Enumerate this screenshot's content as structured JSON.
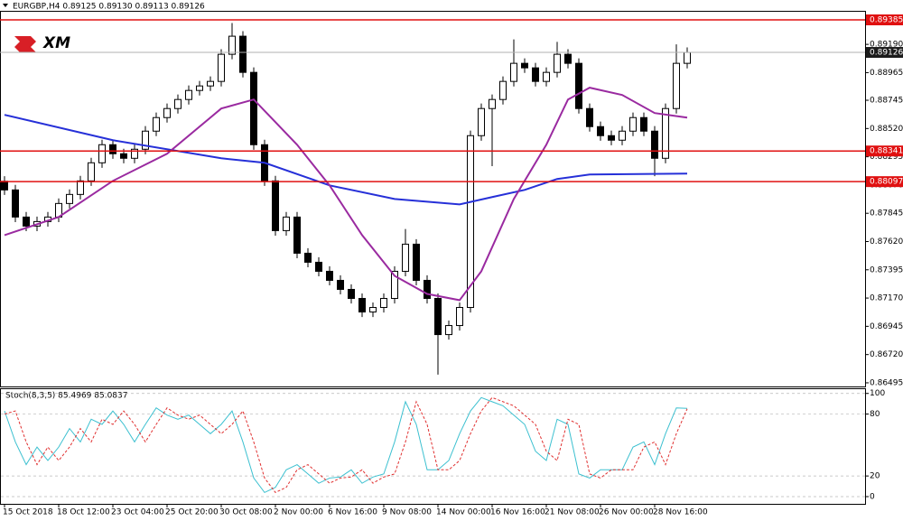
{
  "chart_data": [
    {
      "type": "candlestick",
      "title": "EURGBP,H4  0.89125 0.89130 0.89113 0.89126",
      "logo": "XM",
      "open": [
        0.881,
        0.88031,
        0.87815,
        0.87743,
        0.87779,
        0.87815,
        0.87923,
        0.87995,
        0.88103,
        0.88247,
        0.88391,
        0.88319,
        0.88283,
        0.88355,
        0.88499,
        0.88607,
        0.88679,
        0.88751,
        0.88823,
        0.88859,
        0.88895,
        0.89111,
        0.89255,
        0.88967,
        0.88391,
        0.88103,
        0.87707,
        0.87815,
        0.87527,
        0.87455,
        0.87383,
        0.87311,
        0.87239,
        0.87167,
        0.87059,
        0.87095,
        0.87167,
        0.87383,
        0.87599,
        0.87311,
        0.87167,
        0.86879,
        0.86951,
        0.87095,
        0.88463,
        0.88679,
        0.88751,
        0.88895,
        0.89039,
        0.89003,
        0.88895,
        0.88967,
        0.89111,
        0.89039,
        0.88679,
        0.88535,
        0.88463,
        0.88427,
        0.88499,
        0.88607,
        0.88499,
        0.88283,
        0.88679,
        0.89039
      ],
      "high": [
        0.8814,
        0.88071,
        0.87855,
        0.87819,
        0.87855,
        0.87963,
        0.88035,
        0.88143,
        0.88287,
        0.88431,
        0.88431,
        0.88359,
        0.88395,
        0.88539,
        0.88647,
        0.88719,
        0.88791,
        0.88863,
        0.88899,
        0.88935,
        0.89151,
        0.8936,
        0.89295,
        0.89007,
        0.88431,
        0.88143,
        0.87855,
        0.87855,
        0.87567,
        0.87495,
        0.87423,
        0.87351,
        0.87279,
        0.87207,
        0.87135,
        0.87207,
        0.87423,
        0.8772,
        0.87639,
        0.87351,
        0.87207,
        0.86991,
        0.87135,
        0.88503,
        0.88719,
        0.88791,
        0.88935,
        0.8923,
        0.89079,
        0.89043,
        0.89007,
        0.8921,
        0.89151,
        0.89079,
        0.88719,
        0.88575,
        0.88503,
        0.88539,
        0.88647,
        0.88647,
        0.88539,
        0.88719,
        0.8919,
        0.89166
      ],
      "low": [
        0.87991,
        0.87775,
        0.87703,
        0.87703,
        0.87739,
        0.87775,
        0.87883,
        0.87955,
        0.88063,
        0.88207,
        0.88279,
        0.88243,
        0.88243,
        0.88315,
        0.88459,
        0.88567,
        0.88639,
        0.88711,
        0.88783,
        0.88819,
        0.88855,
        0.89071,
        0.88927,
        0.88351,
        0.88063,
        0.87667,
        0.87667,
        0.87487,
        0.87415,
        0.87343,
        0.87271,
        0.87199,
        0.87127,
        0.87019,
        0.87019,
        0.87055,
        0.87127,
        0.87343,
        0.87271,
        0.87127,
        0.8656,
        0.86839,
        0.86911,
        0.87055,
        0.88423,
        0.8822,
        0.88711,
        0.88855,
        0.88963,
        0.88855,
        0.88855,
        0.88927,
        0.88999,
        0.88639,
        0.88495,
        0.88423,
        0.88387,
        0.88387,
        0.88459,
        0.88459,
        0.8814,
        0.88243,
        0.88639,
        0.88999
      ],
      "close": [
        0.88031,
        0.87815,
        0.87743,
        0.87779,
        0.87815,
        0.87923,
        0.87995,
        0.88103,
        0.88247,
        0.88391,
        0.88319,
        0.88283,
        0.88355,
        0.88499,
        0.88607,
        0.88679,
        0.88751,
        0.88823,
        0.88859,
        0.88895,
        0.89111,
        0.89255,
        0.88967,
        0.88391,
        0.88103,
        0.87707,
        0.87815,
        0.87527,
        0.87455,
        0.87383,
        0.87311,
        0.87239,
        0.87167,
        0.87059,
        0.87095,
        0.87167,
        0.87383,
        0.87599,
        0.87311,
        0.87167,
        0.86879,
        0.86951,
        0.87095,
        0.88463,
        0.88679,
        0.88751,
        0.88895,
        0.89039,
        0.89003,
        0.88895,
        0.88967,
        0.89111,
        0.89039,
        0.88679,
        0.88535,
        0.88463,
        0.88427,
        0.88499,
        0.88607,
        0.88499,
        0.88283,
        0.88679,
        0.89039,
        0.89126
      ],
      "lines": [
        {
          "color": "#2630d8",
          "x": [
            0,
            10,
            20,
            24,
            30,
            36,
            42,
            45,
            48,
            51,
            54,
            63
          ],
          "values": [
            0.88629,
            0.88427,
            0.88283,
            0.88247,
            0.88067,
            0.87959,
            0.87916,
            0.87974,
            0.88031,
            0.88118,
            0.88154,
            0.88161
          ]
        },
        {
          "color": "#9a2aa0",
          "x": [
            0,
            5,
            10,
            15,
            20,
            23,
            27,
            30,
            33,
            36,
            39,
            42,
            44,
            47,
            50,
            52,
            54,
            57,
            60,
            63
          ],
          "values": [
            0.87671,
            0.87815,
            0.88103,
            0.88319,
            0.88679,
            0.88751,
            0.88391,
            0.88067,
            0.87671,
            0.87347,
            0.87203,
            0.87153,
            0.87383,
            0.87959,
            0.88391,
            0.88751,
            0.88845,
            0.88787,
            0.88643,
            0.88607
          ]
        }
      ],
      "levels": [
        {
          "value": 0.89385,
          "color": "#e01010"
        },
        {
          "value": 0.88341,
          "color": "#e01010"
        },
        {
          "value": 0.88097,
          "color": "#e01010"
        }
      ],
      "current_price": 0.89126,
      "ylim": [
        0.86466,
        0.89457
      ],
      "yticks": [
        {
          "value": 0.8919,
          "label": "0.89190"
        },
        0.88965,
        0.88745,
        {
          "value": 0.8852,
          "label": "0.88520"
        },
        0.88295,
        {
          "value": 0.8807,
          "label": "0.88070"
        },
        0.87845,
        {
          "value": 0.8762,
          "label": "0.87620"
        },
        0.87395,
        {
          "value": 0.8717,
          "label": "0.87170"
        },
        0.86945,
        {
          "value": 0.8672,
          "label": "0.86720"
        },
        0.86495
      ],
      "xticks": [
        {
          "value": 0,
          "label": "15 Oct 2018"
        },
        {
          "value": 5,
          "label": "18 Oct 12:00"
        },
        {
          "value": 10,
          "label": "23 Oct 04:00"
        },
        {
          "value": 15,
          "label": "25 Oct 20:00"
        },
        {
          "value": 20,
          "label": "30 Oct 08:00"
        },
        {
          "value": 25,
          "label": "2 Nov 00:00"
        },
        {
          "value": 30,
          "label": "6 Nov 16:00"
        },
        {
          "value": 35,
          "label": "9 Nov 08:00"
        },
        {
          "value": 40,
          "label": "14 Nov 00:00"
        },
        {
          "value": 45,
          "label": "16 Nov 16:00"
        },
        {
          "value": 50,
          "label": "21 Nov 08:00"
        },
        {
          "value": 55,
          "label": "26 Nov 00:00"
        },
        {
          "value": 60,
          "label": "28 Nov 16:00"
        }
      ]
    },
    {
      "type": "line",
      "title": "Stoch(8,3,5) 85.4969 85.0837",
      "ylim": [
        -7,
        105
      ],
      "yticks": [
        0,
        20,
        80,
        100
      ],
      "series": [
        {
          "color": "#3cc0d0",
          "dash": false,
          "values": [
            83,
            53,
            31,
            48,
            35,
            48,
            66,
            53,
            75,
            70,
            83,
            70,
            53,
            70,
            86,
            79,
            75,
            79,
            70,
            61,
            70,
            83,
            53,
            18,
            4,
            9,
            26,
            31,
            22,
            13,
            18,
            19,
            26,
            13,
            19,
            22,
            53,
            92,
            70,
            26,
            26,
            35,
            61,
            83,
            96,
            92,
            88,
            79,
            70,
            44,
            35,
            75,
            70,
            22,
            18,
            26,
            26,
            26,
            48,
            53,
            31,
            61,
            86,
            85.4969
          ]
        },
        {
          "color": "#e03030",
          "dash": true,
          "values": [
            80,
            83,
            53,
            31,
            48,
            35,
            48,
            66,
            53,
            75,
            70,
            83,
            70,
            53,
            70,
            86,
            79,
            75,
            79,
            70,
            61,
            70,
            83,
            53,
            18,
            4,
            9,
            26,
            31,
            22,
            13,
            18,
            19,
            26,
            13,
            19,
            22,
            53,
            92,
            70,
            26,
            26,
            35,
            61,
            83,
            96,
            92,
            88,
            79,
            70,
            44,
            35,
            75,
            70,
            22,
            18,
            26,
            26,
            26,
            48,
            53,
            31,
            61,
            85.0837
          ]
        }
      ]
    }
  ]
}
